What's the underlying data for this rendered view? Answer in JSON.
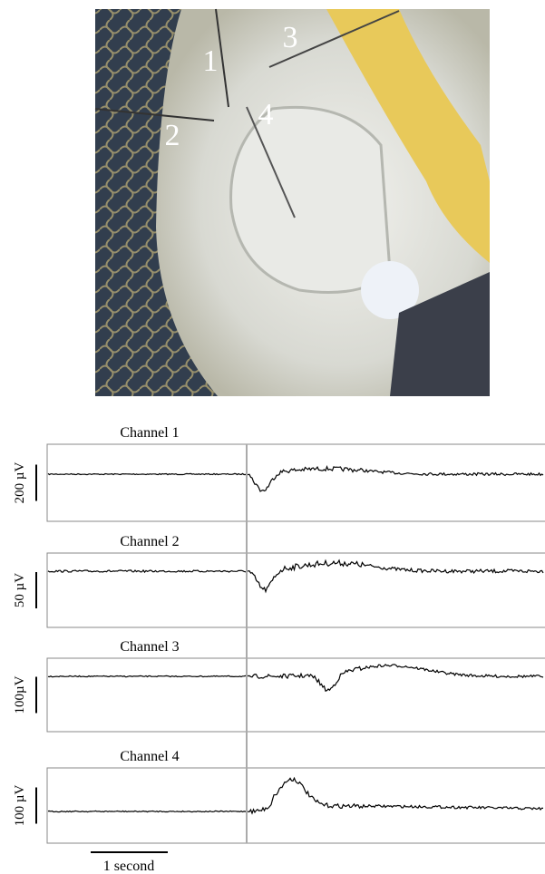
{
  "photo": {
    "labels": [
      "1",
      "2",
      "3",
      "4"
    ]
  },
  "channels": [
    {
      "title": "Channel 1",
      "scale": "200 µV"
    },
    {
      "title": "Channel 2",
      "scale": "50 µV"
    },
    {
      "title": "Channel 3",
      "scale": "100µV"
    },
    {
      "title": "Channel 4",
      "scale": "100 µV"
    }
  ],
  "time_scale": "1 second"
}
